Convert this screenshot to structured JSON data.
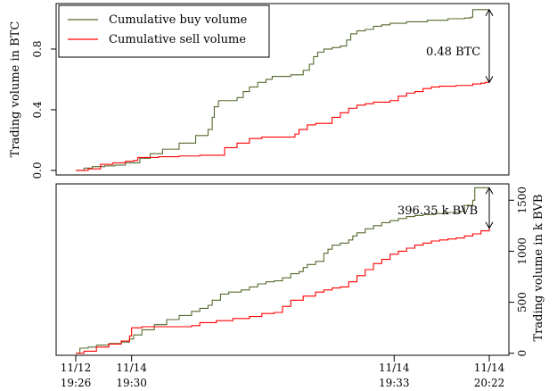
{
  "chart_data": [
    {
      "type": "line",
      "ylabel": "Trading volume in BTC",
      "ylim": [
        -0.03,
        1.1
      ],
      "yticks": [
        {
          "v": 0.0,
          "label": "0.0"
        },
        {
          "v": 0.4,
          "label": "0.4"
        },
        {
          "v": 0.8,
          "label": "0.8"
        }
      ],
      "legend": {
        "placement": "top-left"
      },
      "annotation": {
        "text": "0.48 BTC",
        "from": 0.58,
        "to": 1.06
      },
      "series": [
        {
          "name": "Cumulative buy volume",
          "color": "#556b2f",
          "points": [
            [
              0.0,
              0.0
            ],
            [
              0.02,
              0.015
            ],
            [
              0.04,
              0.025
            ],
            [
              0.07,
              0.03
            ],
            [
              0.095,
              0.035
            ],
            [
              0.12,
              0.05
            ],
            [
              0.155,
              0.08
            ],
            [
              0.18,
              0.11
            ],
            [
              0.21,
              0.14
            ],
            [
              0.25,
              0.18
            ],
            [
              0.29,
              0.23
            ],
            [
              0.32,
              0.27
            ],
            [
              0.33,
              0.35
            ],
            [
              0.335,
              0.42
            ],
            [
              0.345,
              0.46
            ],
            [
              0.37,
              0.46
            ],
            [
              0.39,
              0.48
            ],
            [
              0.405,
              0.52
            ],
            [
              0.42,
              0.55
            ],
            [
              0.44,
              0.58
            ],
            [
              0.46,
              0.6
            ],
            [
              0.475,
              0.62
            ],
            [
              0.49,
              0.62
            ],
            [
              0.505,
              0.62
            ],
            [
              0.52,
              0.63
            ],
            [
              0.535,
              0.63
            ],
            [
              0.55,
              0.66
            ],
            [
              0.565,
              0.7
            ],
            [
              0.575,
              0.75
            ],
            [
              0.585,
              0.78
            ],
            [
              0.6,
              0.8
            ],
            [
              0.62,
              0.81
            ],
            [
              0.64,
              0.82
            ],
            [
              0.655,
              0.86
            ],
            [
              0.665,
              0.9
            ],
            [
              0.68,
              0.92
            ],
            [
              0.7,
              0.93
            ],
            [
              0.72,
              0.95
            ],
            [
              0.74,
              0.96
            ],
            [
              0.76,
              0.97
            ],
            [
              0.8,
              0.98
            ],
            [
              0.85,
              0.99
            ],
            [
              0.9,
              1.0
            ],
            [
              0.94,
              1.005
            ],
            [
              0.955,
              1.01
            ],
            [
              0.96,
              1.06
            ],
            [
              1.0,
              1.06
            ]
          ]
        },
        {
          "name": "Cumulative sell volume",
          "color": "#ff0000",
          "points": [
            [
              0.0,
              0.0
            ],
            [
              0.03,
              0.01
            ],
            [
              0.06,
              0.04
            ],
            [
              0.09,
              0.05
            ],
            [
              0.12,
              0.06
            ],
            [
              0.14,
              0.065
            ],
            [
              0.15,
              0.085
            ],
            [
              0.2,
              0.09
            ],
            [
              0.25,
              0.095
            ],
            [
              0.3,
              0.1
            ],
            [
              0.35,
              0.1
            ],
            [
              0.36,
              0.15
            ],
            [
              0.38,
              0.15
            ],
            [
              0.39,
              0.18
            ],
            [
              0.42,
              0.21
            ],
            [
              0.45,
              0.22
            ],
            [
              0.5,
              0.22
            ],
            [
              0.53,
              0.24
            ],
            [
              0.54,
              0.27
            ],
            [
              0.56,
              0.3
            ],
            [
              0.58,
              0.31
            ],
            [
              0.61,
              0.31
            ],
            [
              0.62,
              0.35
            ],
            [
              0.64,
              0.38
            ],
            [
              0.66,
              0.41
            ],
            [
              0.68,
              0.43
            ],
            [
              0.7,
              0.44
            ],
            [
              0.72,
              0.45
            ],
            [
              0.74,
              0.45
            ],
            [
              0.76,
              0.46
            ],
            [
              0.78,
              0.49
            ],
            [
              0.8,
              0.51
            ],
            [
              0.82,
              0.52
            ],
            [
              0.84,
              0.54
            ],
            [
              0.86,
              0.55
            ],
            [
              0.88,
              0.555
            ],
            [
              0.92,
              0.56
            ],
            [
              0.96,
              0.57
            ],
            [
              0.98,
              0.575
            ],
            [
              0.99,
              0.58
            ],
            [
              1.0,
              0.59
            ]
          ]
        }
      ]
    },
    {
      "type": "line",
      "ylabel": "Trading volume in k BVB",
      "ylim": [
        -20,
        1660
      ],
      "yticks": [
        {
          "v": 0,
          "label": "0"
        },
        {
          "v": 500,
          "label": "500"
        },
        {
          "v": 1000,
          "label": "1000"
        },
        {
          "v": 1500,
          "label": "1500"
        }
      ],
      "annotation": {
        "text": "396.35 k BVB",
        "from": 1225,
        "to": 1622
      },
      "x_ticks": [
        {
          "pos": 0.0,
          "label": [
            "11/12",
            "19:26"
          ]
        },
        {
          "pos": 0.135,
          "label": [
            "11/14",
            "19:30"
          ]
        },
        {
          "pos": 0.77,
          "label": [
            "11/14",
            "19:33"
          ]
        },
        {
          "pos": 1.0,
          "label": [
            "11/14",
            "20:22"
          ]
        }
      ],
      "series": [
        {
          "name": "Cumulative buy volume",
          "color": "#556b2f",
          "points": [
            [
              0.0,
              0
            ],
            [
              0.01,
              50
            ],
            [
              0.03,
              60
            ],
            [
              0.05,
              80
            ],
            [
              0.08,
              95
            ],
            [
              0.11,
              110
            ],
            [
              0.13,
              140
            ],
            [
              0.14,
              180
            ],
            [
              0.16,
              230
            ],
            [
              0.19,
              280
            ],
            [
              0.22,
              330
            ],
            [
              0.25,
              370
            ],
            [
              0.28,
              410
            ],
            [
              0.3,
              440
            ],
            [
              0.32,
              470
            ],
            [
              0.33,
              520
            ],
            [
              0.35,
              580
            ],
            [
              0.37,
              600
            ],
            [
              0.4,
              620
            ],
            [
              0.42,
              650
            ],
            [
              0.44,
              680
            ],
            [
              0.46,
              700
            ],
            [
              0.48,
              710
            ],
            [
              0.5,
              740
            ],
            [
              0.52,
              780
            ],
            [
              0.54,
              800
            ],
            [
              0.55,
              840
            ],
            [
              0.56,
              870
            ],
            [
              0.58,
              900
            ],
            [
              0.6,
              980
            ],
            [
              0.61,
              1020
            ],
            [
              0.62,
              1060
            ],
            [
              0.64,
              1080
            ],
            [
              0.66,
              1110
            ],
            [
              0.67,
              1150
            ],
            [
              0.68,
              1180
            ],
            [
              0.7,
              1220
            ],
            [
              0.72,
              1250
            ],
            [
              0.74,
              1280
            ],
            [
              0.76,
              1300
            ],
            [
              0.78,
              1320
            ],
            [
              0.8,
              1340
            ],
            [
              0.82,
              1350
            ],
            [
              0.84,
              1360
            ],
            [
              0.87,
              1370
            ],
            [
              0.9,
              1380
            ],
            [
              0.93,
              1390
            ],
            [
              0.94,
              1450
            ],
            [
              0.96,
              1500
            ],
            [
              0.965,
              1622
            ],
            [
              1.0,
              1622
            ]
          ]
        },
        {
          "name": "Cumulative sell volume",
          "color": "#ff0000",
          "points": [
            [
              0.0,
              0
            ],
            [
              0.02,
              20
            ],
            [
              0.05,
              60
            ],
            [
              0.08,
              90
            ],
            [
              0.11,
              120
            ],
            [
              0.13,
              170
            ],
            [
              0.135,
              250
            ],
            [
              0.16,
              260
            ],
            [
              0.2,
              260
            ],
            [
              0.24,
              260
            ],
            [
              0.28,
              270
            ],
            [
              0.3,
              300
            ],
            [
              0.34,
              320
            ],
            [
              0.38,
              340
            ],
            [
              0.42,
              360
            ],
            [
              0.45,
              390
            ],
            [
              0.48,
              400
            ],
            [
              0.5,
              460
            ],
            [
              0.52,
              520
            ],
            [
              0.55,
              560
            ],
            [
              0.58,
              600
            ],
            [
              0.6,
              620
            ],
            [
              0.62,
              640
            ],
            [
              0.64,
              650
            ],
            [
              0.66,
              700
            ],
            [
              0.68,
              760
            ],
            [
              0.7,
              820
            ],
            [
              0.72,
              880
            ],
            [
              0.74,
              920
            ],
            [
              0.76,
              970
            ],
            [
              0.78,
              1000
            ],
            [
              0.8,
              1030
            ],
            [
              0.82,
              1060
            ],
            [
              0.84,
              1080
            ],
            [
              0.86,
              1100
            ],
            [
              0.88,
              1110
            ],
            [
              0.9,
              1120
            ],
            [
              0.92,
              1130
            ],
            [
              0.94,
              1150
            ],
            [
              0.96,
              1170
            ],
            [
              0.98,
              1200
            ],
            [
              1.0,
              1225
            ]
          ]
        }
      ]
    }
  ]
}
